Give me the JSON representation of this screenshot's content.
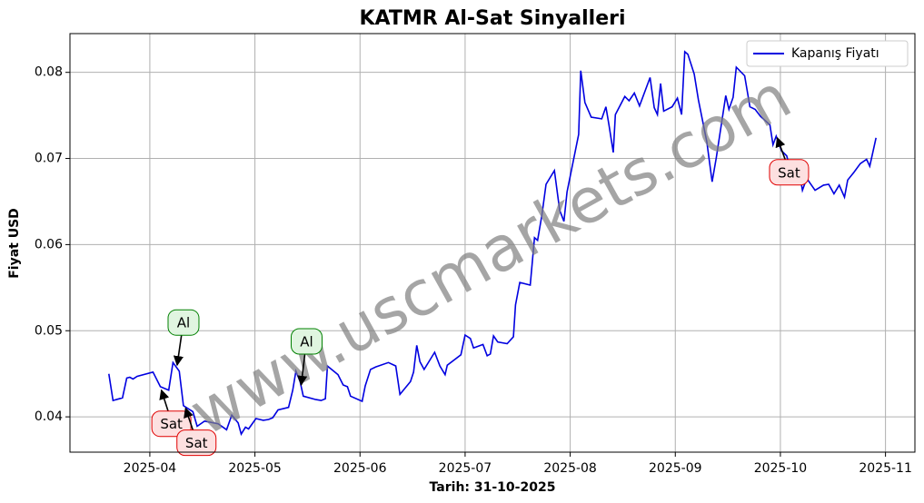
{
  "chart_data": {
    "type": "line",
    "title": "KATMR Al-Sat Sinyalleri",
    "xlabel": "Tarih: 31-10-2025",
    "ylabel": "Fiyat USD",
    "watermark": "www.uscmarkets.com",
    "legend": "upper right",
    "grid": true,
    "x": [
      3.61,
      3.65,
      3.74,
      3.78,
      3.81,
      3.84,
      3.88,
      4.03,
      4.1,
      4.18,
      4.22,
      4.28,
      4.32,
      4.41,
      4.45,
      4.52,
      4.65,
      4.73,
      4.78,
      4.84,
      4.87,
      4.91,
      4.94,
      5.01,
      5.08,
      5.13,
      5.17,
      5.22,
      5.32,
      5.36,
      5.39,
      5.43,
      5.46,
      5.58,
      5.63,
      5.67,
      5.69,
      5.79,
      5.84,
      5.88,
      5.91,
      6.02,
      6.05,
      6.1,
      6.15,
      6.27,
      6.34,
      6.38,
      6.48,
      6.51,
      6.54,
      6.57,
      6.61,
      6.71,
      6.76,
      6.81,
      6.83,
      6.96,
      7.0,
      7.05,
      7.08,
      7.17,
      7.21,
      7.24,
      7.27,
      7.31,
      7.4,
      7.46,
      7.48,
      7.52,
      7.62,
      7.66,
      7.69,
      7.73,
      7.77,
      7.85,
      7.9,
      7.94,
      7.97,
      8.08,
      8.1,
      8.14,
      8.2,
      8.3,
      8.34,
      8.37,
      8.41,
      8.43,
      8.52,
      8.56,
      8.61,
      8.66,
      8.76,
      8.8,
      8.83,
      8.86,
      8.89,
      8.97,
      9.02,
      9.06,
      9.09,
      9.12,
      9.18,
      9.22,
      9.3,
      9.35,
      9.39,
      9.48,
      9.51,
      9.55,
      9.58,
      9.66,
      9.71,
      9.76,
      9.81,
      9.9,
      9.93,
      9.96,
      10.01,
      10.06,
      10.09,
      10.18,
      10.21,
      10.25,
      10.33,
      10.41,
      10.46,
      10.51,
      10.56,
      10.61,
      10.64,
      10.7,
      10.76,
      10.82,
      10.85,
      10.91
    ],
    "series": [
      {
        "name": "Kapanış Fiyatı",
        "color": "#0000e0",
        "values": [
          0.045,
          0.0419,
          0.0422,
          0.0445,
          0.0446,
          0.0444,
          0.0447,
          0.0452,
          0.0435,
          0.0431,
          0.0463,
          0.0453,
          0.0413,
          0.0406,
          0.0389,
          0.0395,
          0.0392,
          0.0385,
          0.0402,
          0.0393,
          0.038,
          0.0388,
          0.0386,
          0.0398,
          0.0396,
          0.0397,
          0.0399,
          0.0408,
          0.0411,
          0.0431,
          0.0453,
          0.0441,
          0.0424,
          0.042,
          0.0419,
          0.0421,
          0.0459,
          0.0449,
          0.0437,
          0.0435,
          0.0424,
          0.0418,
          0.0436,
          0.0455,
          0.0458,
          0.0463,
          0.0459,
          0.0426,
          0.0441,
          0.0452,
          0.0483,
          0.0464,
          0.0455,
          0.0475,
          0.0459,
          0.0449,
          0.046,
          0.0472,
          0.0495,
          0.0491,
          0.048,
          0.0484,
          0.0471,
          0.0473,
          0.0494,
          0.0487,
          0.0485,
          0.0493,
          0.053,
          0.0556,
          0.0553,
          0.0608,
          0.0605,
          0.0634,
          0.067,
          0.0686,
          0.064,
          0.0627,
          0.0661,
          0.0728,
          0.0802,
          0.0765,
          0.0748,
          0.0746,
          0.076,
          0.0738,
          0.0707,
          0.0751,
          0.0772,
          0.0767,
          0.0776,
          0.0761,
          0.0794,
          0.0759,
          0.0751,
          0.0787,
          0.0755,
          0.076,
          0.077,
          0.0751,
          0.0824,
          0.0821,
          0.0798,
          0.0768,
          0.0719,
          0.0673,
          0.0701,
          0.0773,
          0.0757,
          0.0771,
          0.0806,
          0.0796,
          0.076,
          0.0757,
          0.0749,
          0.0739,
          0.0716,
          0.0726,
          0.0709,
          0.0703,
          0.0689,
          0.0684,
          0.0663,
          0.0677,
          0.0663,
          0.0669,
          0.067,
          0.0659,
          0.0669,
          0.0655,
          0.0675,
          0.0684,
          0.0694,
          0.0699,
          0.0691,
          0.0724
        ]
      }
    ],
    "xlim": [
      3.24,
      11.28
    ],
    "xticks": [
      {
        "value": 4,
        "label": "2025-04"
      },
      {
        "value": 5,
        "label": "2025-05"
      },
      {
        "value": 6,
        "label": "2025-06"
      },
      {
        "value": 7,
        "label": "2025-07"
      },
      {
        "value": 8,
        "label": "2025-08"
      },
      {
        "value": 9,
        "label": "2025-09"
      },
      {
        "value": 10,
        "label": "2025-10"
      },
      {
        "value": 11,
        "label": "2025-11"
      }
    ],
    "ylim": [
      0.0359,
      0.0845
    ],
    "yticks": [
      0.04,
      0.05,
      0.06,
      0.07,
      0.08
    ],
    "annotations": [
      {
        "text": "Al",
        "x": 4.26,
        "y": 0.046
      },
      {
        "text": "Sat",
        "x": 4.11,
        "y": 0.0431
      },
      {
        "text": "Sat",
        "x": 4.34,
        "y": 0.041
      },
      {
        "text": "Al",
        "x": 5.44,
        "y": 0.0437
      },
      {
        "text": "Sat",
        "x": 9.97,
        "y": 0.0724
      }
    ]
  }
}
